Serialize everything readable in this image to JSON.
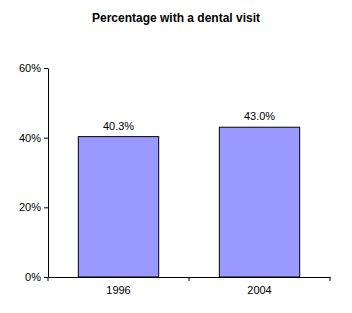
{
  "chart_data": {
    "type": "bar",
    "title": "Percentage with a dental visit",
    "categories": [
      "1996",
      "2004"
    ],
    "values": [
      40.3,
      43.0
    ],
    "value_labels": [
      "40.3%",
      "43.0%"
    ],
    "color": "#9999ff",
    "data_labels": true,
    "grid": false,
    "ylim": [
      0,
      60
    ],
    "yticks": [
      {
        "value": 0,
        "label": "0%"
      },
      {
        "value": 20,
        "label": "20%"
      },
      {
        "value": 40,
        "label": "40%"
      },
      {
        "value": 60,
        "label": "60%"
      }
    ]
  }
}
